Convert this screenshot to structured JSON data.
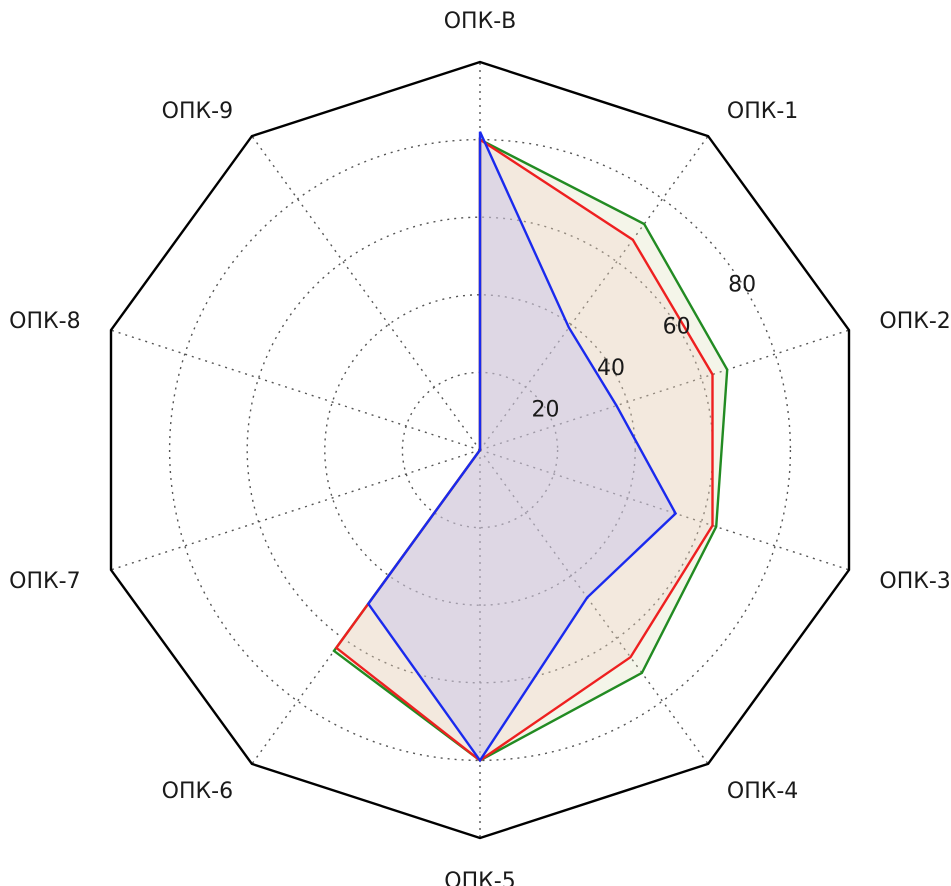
{
  "chart_data": {
    "type": "radar",
    "title": "",
    "categories": [
      "ОПК-В",
      "ОПК-1",
      "ОПК-2",
      "ОПК-3",
      "ОПК-4",
      "ОПК-5",
      "ОПК-6",
      "ОПК-7",
      "ОПК-8",
      "ОПК-9"
    ],
    "radial_ticks": [
      "20",
      "40",
      "60",
      "80"
    ],
    "tick_values": [
      20,
      40,
      60,
      80
    ],
    "rmax": 100,
    "grid": true,
    "series": [
      {
        "values": [
          80,
          72,
          67,
          64,
          71,
          80,
          64,
          0,
          0,
          0
        ],
        "color": "#228b22",
        "fill": "#d4d9a8",
        "fill_opacity": 0.25
      },
      {
        "values": [
          80,
          67,
          63,
          63,
          66,
          80,
          63,
          0,
          0,
          0
        ],
        "color": "#ee2020",
        "fill": "#f0c8c0",
        "fill_opacity": 0.25
      },
      {
        "values": [
          82,
          39,
          37,
          53,
          47,
          80,
          49,
          0,
          0,
          0
        ],
        "color": "#1a2aee",
        "fill": "#b8b8f0",
        "fill_opacity": 0.35
      }
    ]
  }
}
